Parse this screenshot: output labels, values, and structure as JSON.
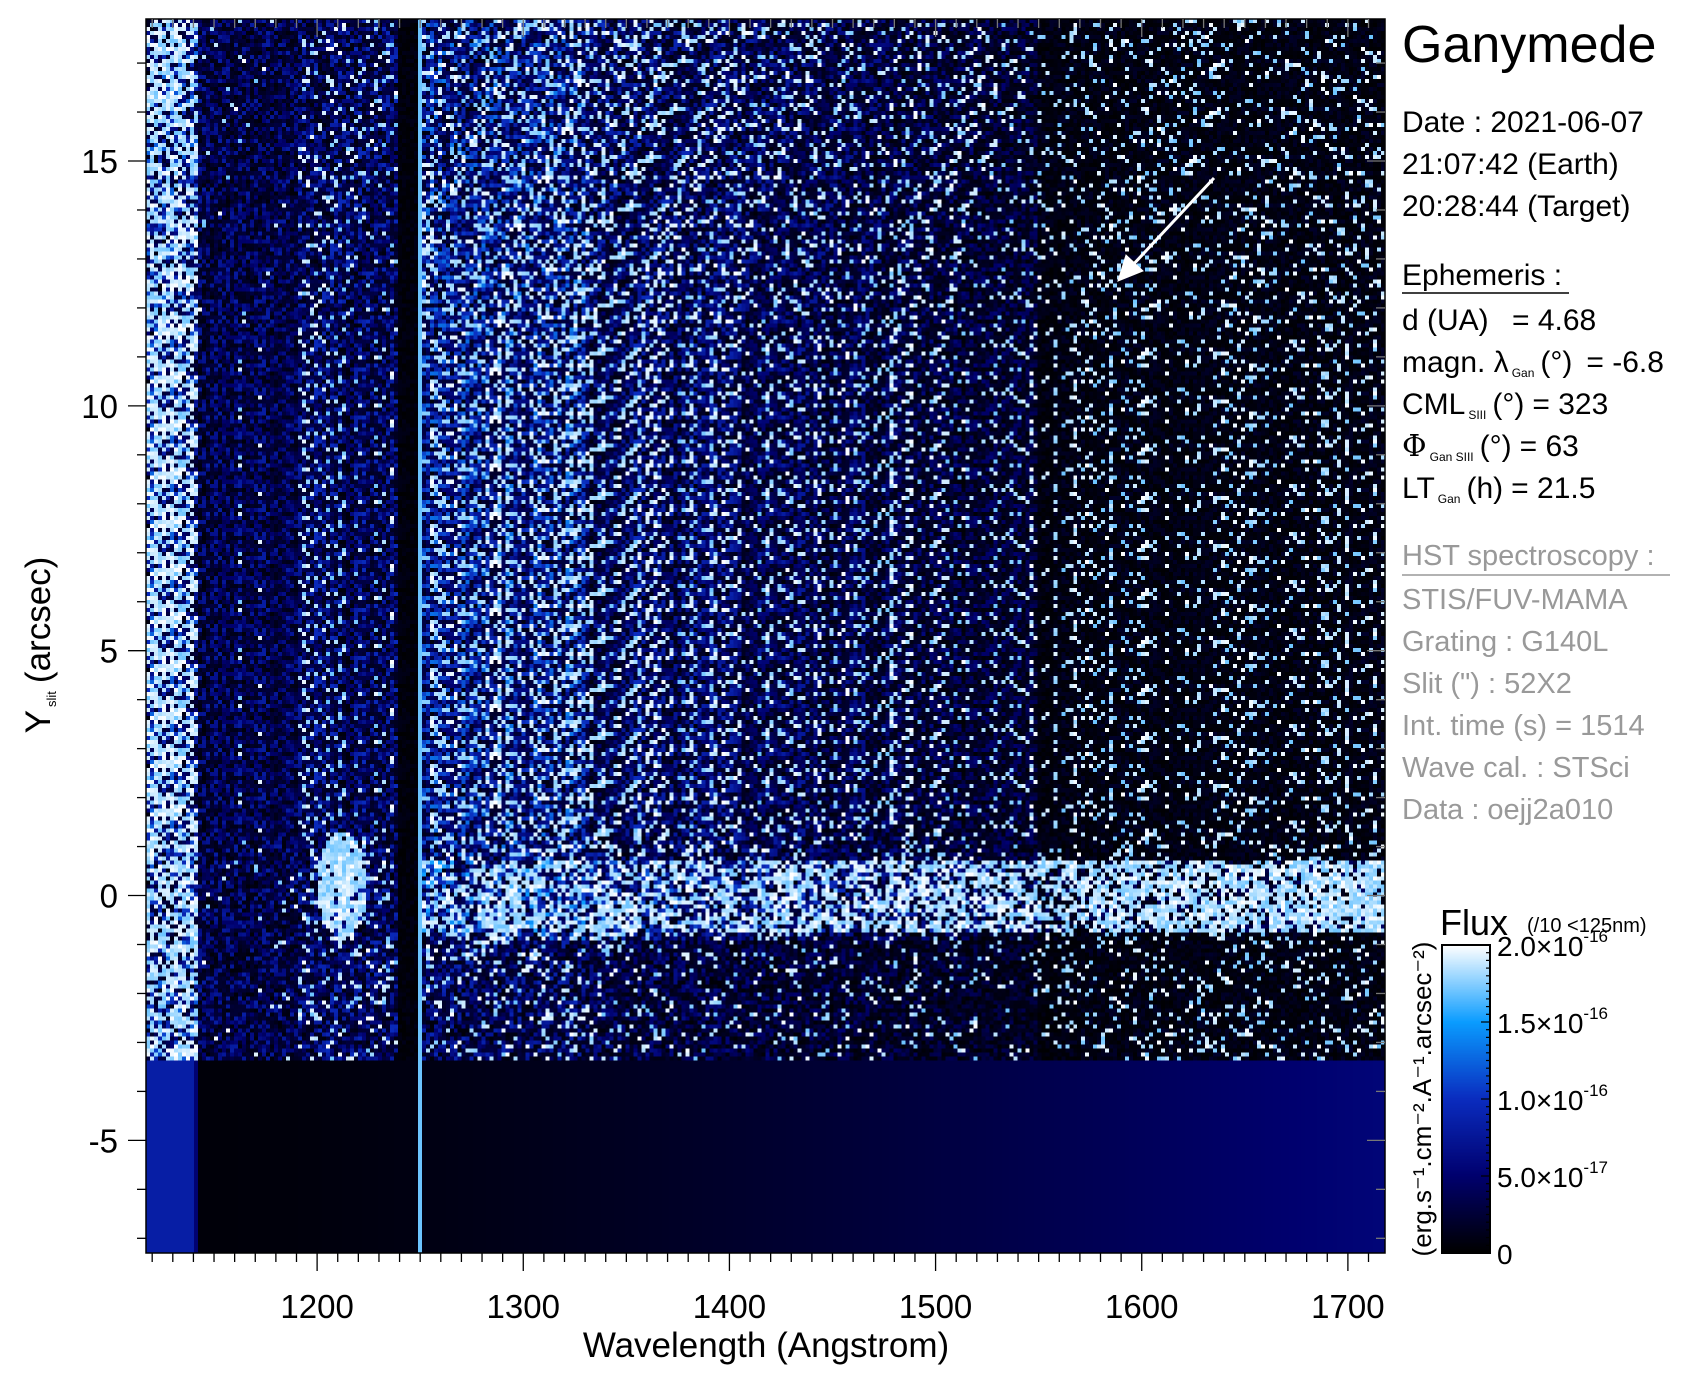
{
  "panel": {
    "title": "Ganymede",
    "date_lines": [
      "Date : 2021-06-07",
      "21:07:42 (Earth)",
      "20:28:44 (Target)"
    ],
    "ephemeris": {
      "heading": "Ephemeris :",
      "d_label": "d (UA)",
      "d_value": "= 4.68",
      "lat_label": "magn. λ",
      "lat_sub": "Gan",
      "lat_unit": "(°)",
      "lat_value": "= -6.8",
      "cml_label": "CML",
      "cml_sub": "SIII",
      "cml_unit": "(°)",
      "cml_value": "= 323",
      "phi_label": "Φ",
      "phi_sub": "Gan SIII",
      "phi_unit": "(°)",
      "phi_value": "= 63",
      "lt_label": "LT",
      "lt_sub": "Gan",
      "lt_unit": "(h)",
      "lt_value": "= 21.5"
    },
    "hst": {
      "heading": "HST spectroscopy :",
      "lines": [
        "STIS/FUV-MAMA",
        "Grating : G140L",
        "Slit (\") : 52X2",
        "Int. time (s) = 1514",
        "Wave cal. : STSci",
        "Data : oejj2a010"
      ]
    }
  },
  "chart_data": {
    "type": "heatmap",
    "xlabel": "Wavelength (Angstrom)",
    "ylabel_main": "Y",
    "ylabel_sub": "slit",
    "ylabel_unit": "(arcsec)",
    "xlim": [
      1117,
      1718
    ],
    "ylim": [
      -7.3,
      17.9
    ],
    "x_ticks": [
      1200,
      1300,
      1400,
      1500,
      1600,
      1700
    ],
    "x_tick_labels": [
      "1200",
      "1300",
      "1400",
      "1500",
      "1600",
      "1700"
    ],
    "y_ticks": [
      -5,
      0,
      5,
      10,
      15
    ],
    "y_tick_labels": [
      "-5",
      "0",
      "5",
      "10",
      "15"
    ],
    "grid": false,
    "annotation": "arrow",
    "colorbar": {
      "title": "Flux",
      "note": "(/10 <125nm)",
      "unit_label": "(erg.s⁻¹.cm⁻².A⁻¹.arcsec⁻²)",
      "range": [
        0,
        2e-16
      ],
      "ticks": [
        0,
        5e-17,
        1e-16,
        1.5e-16,
        2e-16
      ],
      "tick_labels": [
        {
          "mant": "0",
          "exp": ""
        },
        {
          "mant": "5.0×10",
          "exp": "-17"
        },
        {
          "mant": "1.0×10",
          "exp": "-16"
        },
        {
          "mant": "1.5×10",
          "exp": "-16"
        },
        {
          "mant": "2.0×10",
          "exp": "-16"
        }
      ],
      "colormap": [
        "#000000",
        "#00006e",
        "#0a2cbf",
        "#0a9cff",
        "#ffffff"
      ]
    }
  }
}
